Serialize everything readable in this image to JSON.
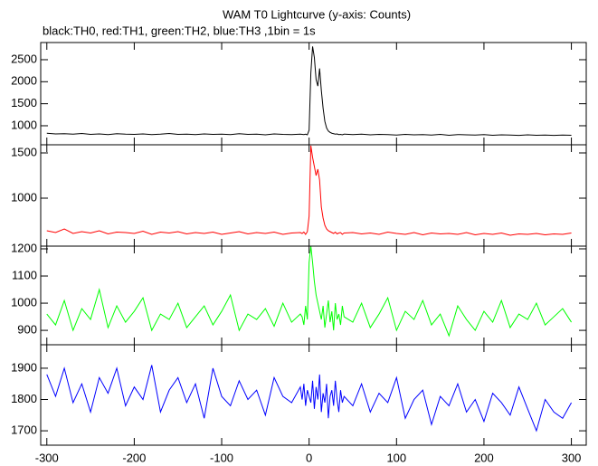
{
  "chart_data": [
    {
      "type": "line",
      "title": "WAM T0 Lightcurve (y-axis: Counts)",
      "subtitle": "black:TH0, red:TH1, green:TH2, blue:TH3 ,1bin = 1s",
      "color": "#000000",
      "x": [
        -300,
        -290,
        -280,
        -270,
        -260,
        -250,
        -240,
        -230,
        -220,
        -210,
        -200,
        -190,
        -180,
        -170,
        -160,
        -150,
        -140,
        -130,
        -120,
        -110,
        -100,
        -90,
        -80,
        -70,
        -60,
        -50,
        -40,
        -30,
        -20,
        -10,
        -8,
        -6,
        -4,
        -2,
        0,
        2,
        4,
        6,
        8,
        10,
        12,
        14,
        16,
        18,
        20,
        22,
        24,
        26,
        28,
        30,
        32,
        34,
        36,
        38,
        40,
        50,
        60,
        70,
        80,
        90,
        100,
        110,
        120,
        130,
        140,
        150,
        160,
        170,
        180,
        190,
        200,
        210,
        220,
        230,
        240,
        250,
        260,
        270,
        280,
        290,
        300
      ],
      "values": [
        830,
        815,
        820,
        810,
        825,
        805,
        815,
        800,
        820,
        810,
        805,
        815,
        800,
        810,
        825,
        805,
        810,
        800,
        815,
        805,
        810,
        800,
        820,
        805,
        810,
        795,
        815,
        805,
        800,
        810,
        805,
        800,
        810,
        795,
        900,
        2200,
        2800,
        2550,
        2050,
        1900,
        2300,
        1800,
        1400,
        1100,
        950,
        880,
        850,
        830,
        820,
        810,
        815,
        800,
        805,
        795,
        810,
        800,
        810,
        795,
        805,
        800,
        790,
        805,
        795,
        800,
        790,
        805,
        785,
        800,
        795,
        790,
        800,
        785,
        795,
        790,
        780,
        795,
        785,
        790,
        780,
        790,
        785
      ],
      "xlim": [
        -307,
        317
      ],
      "xticks": [
        -300,
        -200,
        -100,
        0,
        100,
        200,
        300
      ],
      "ylim": [
        568,
        2890
      ],
      "yticks": [
        1000,
        1500,
        2000,
        2500
      ]
    },
    {
      "type": "line",
      "color": "#ff0000",
      "x": [
        -300,
        -290,
        -280,
        -270,
        -260,
        -250,
        -240,
        -230,
        -220,
        -210,
        -200,
        -190,
        -180,
        -170,
        -160,
        -150,
        -140,
        -130,
        -120,
        -110,
        -100,
        -90,
        -80,
        -70,
        -60,
        -50,
        -40,
        -30,
        -20,
        -10,
        -8,
        -6,
        -4,
        -2,
        0,
        2,
        4,
        6,
        8,
        10,
        12,
        14,
        16,
        18,
        20,
        22,
        24,
        26,
        28,
        30,
        32,
        34,
        36,
        38,
        40,
        50,
        60,
        70,
        80,
        90,
        100,
        110,
        120,
        130,
        140,
        150,
        160,
        170,
        180,
        190,
        200,
        210,
        220,
        230,
        240,
        250,
        260,
        270,
        280,
        290,
        300
      ],
      "values": [
        640,
        620,
        660,
        610,
        630,
        615,
        640,
        605,
        625,
        620,
        610,
        635,
        600,
        625,
        615,
        630,
        605,
        620,
        610,
        625,
        600,
        615,
        630,
        605,
        620,
        610,
        625,
        600,
        615,
        620,
        610,
        625,
        600,
        630,
        800,
        1580,
        1450,
        1350,
        1250,
        1320,
        1200,
        900,
        780,
        700,
        660,
        640,
        630,
        620,
        610,
        625,
        605,
        615,
        620,
        600,
        615,
        620,
        605,
        615,
        600,
        625,
        610,
        600,
        620,
        595,
        615,
        605,
        610,
        600,
        620,
        595,
        610,
        600,
        615,
        590,
        605,
        600,
        610,
        595,
        605,
        600,
        615
      ],
      "xlim": [
        -307,
        317
      ],
      "xticks": [
        -300,
        -200,
        -100,
        0,
        100,
        200,
        300
      ],
      "ylim": [
        470,
        1590
      ],
      "yticks": [
        1000,
        1500
      ]
    },
    {
      "type": "line",
      "color": "#00ff00",
      "x": [
        -300,
        -290,
        -280,
        -270,
        -260,
        -250,
        -240,
        -230,
        -220,
        -210,
        -200,
        -190,
        -180,
        -170,
        -160,
        -150,
        -140,
        -130,
        -120,
        -110,
        -100,
        -90,
        -80,
        -70,
        -60,
        -50,
        -40,
        -30,
        -20,
        -10,
        -8,
        -6,
        -4,
        -2,
        0,
        2,
        4,
        6,
        8,
        10,
        12,
        14,
        16,
        18,
        20,
        22,
        24,
        26,
        28,
        30,
        32,
        34,
        36,
        38,
        40,
        50,
        60,
        70,
        80,
        90,
        100,
        110,
        120,
        130,
        140,
        150,
        160,
        170,
        180,
        190,
        200,
        210,
        220,
        230,
        240,
        250,
        260,
        270,
        280,
        290,
        300
      ],
      "values": [
        960,
        920,
        1010,
        900,
        980,
        940,
        1050,
        910,
        990,
        930,
        970,
        1020,
        900,
        960,
        940,
        1000,
        910,
        950,
        990,
        920,
        970,
        1030,
        900,
        960,
        940,
        980,
        915,
        1000,
        930,
        960,
        950,
        920,
        990,
        940,
        1150,
        1210,
        1150,
        1080,
        1030,
        1000,
        970,
        940,
        990,
        910,
        960,
        1010,
        930,
        970,
        900,
        1000,
        940,
        960,
        920,
        990,
        950,
        930,
        1000,
        910,
        960,
        1020,
        900,
        970,
        940,
        1010,
        920,
        960,
        880,
        990,
        940,
        900,
        970,
        930,
        1010,
        910,
        960,
        940,
        1000,
        920,
        950,
        980,
        930
      ],
      "xlim": [
        -307,
        317
      ],
      "xticks": [
        -300,
        -200,
        -100,
        0,
        100,
        200,
        300
      ],
      "ylim": [
        847,
        1210
      ],
      "yticks": [
        900,
        1000,
        1100,
        1200
      ]
    },
    {
      "type": "line",
      "color": "#0000ff",
      "x": [
        -300,
        -290,
        -280,
        -270,
        -260,
        -250,
        -240,
        -230,
        -220,
        -210,
        -200,
        -190,
        -180,
        -170,
        -160,
        -150,
        -140,
        -130,
        -120,
        -110,
        -100,
        -90,
        -80,
        -70,
        -60,
        -50,
        -40,
        -30,
        -20,
        -10,
        -8,
        -6,
        -4,
        -2,
        0,
        2,
        4,
        6,
        8,
        10,
        12,
        14,
        16,
        18,
        20,
        22,
        24,
        26,
        28,
        30,
        32,
        34,
        36,
        38,
        40,
        50,
        60,
        70,
        80,
        90,
        100,
        110,
        120,
        130,
        140,
        150,
        160,
        170,
        180,
        190,
        200,
        210,
        220,
        230,
        240,
        250,
        260,
        270,
        280,
        290,
        300
      ],
      "values": [
        1880,
        1810,
        1900,
        1790,
        1850,
        1760,
        1870,
        1820,
        1900,
        1780,
        1840,
        1800,
        1910,
        1760,
        1830,
        1870,
        1790,
        1850,
        1740,
        1900,
        1810,
        1780,
        1860,
        1800,
        1830,
        1750,
        1870,
        1810,
        1790,
        1840,
        1800,
        1850,
        1780,
        1830,
        1810,
        1790,
        1860,
        1770,
        1840,
        1800,
        1880,
        1760,
        1820,
        1790,
        1850,
        1740,
        1810,
        1830,
        1780,
        1860,
        1800,
        1760,
        1830,
        1790,
        1810,
        1780,
        1850,
        1760,
        1820,
        1790,
        1870,
        1740,
        1800,
        1830,
        1720,
        1810,
        1780,
        1850,
        1760,
        1800,
        1730,
        1820,
        1790,
        1750,
        1840,
        1770,
        1700,
        1800,
        1760,
        1740,
        1790
      ],
      "xlim": [
        -307,
        317
      ],
      "xticks": [
        -300,
        -200,
        -100,
        0,
        100,
        200,
        300
      ],
      "ylim": [
        1654,
        1975
      ],
      "yticks": [
        1700,
        1800,
        1900
      ]
    }
  ]
}
